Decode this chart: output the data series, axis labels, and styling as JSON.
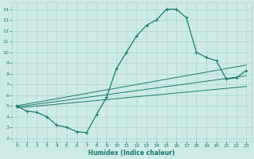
{
  "xlabel": "Humidex (Indice chaleur)",
  "bg_color": "#ceeae7",
  "grid_color": "#add4d0",
  "line_color": "#1a7a6e",
  "xlim": [
    -0.5,
    23.5
  ],
  "ylim": [
    1.7,
    14.6
  ],
  "yticks": [
    2,
    3,
    4,
    5,
    6,
    7,
    8,
    9,
    10,
    11,
    12,
    13,
    14
  ],
  "xticks": [
    0,
    1,
    2,
    3,
    4,
    5,
    6,
    7,
    8,
    9,
    10,
    11,
    12,
    13,
    14,
    15,
    16,
    17,
    18,
    19,
    20,
    21,
    22,
    23
  ],
  "main_x": [
    0,
    1,
    2,
    3,
    4,
    5,
    6,
    7,
    8,
    9,
    10,
    11,
    12,
    13,
    14,
    15,
    16,
    17,
    18,
    19,
    20,
    21,
    22,
    23
  ],
  "main_y": [
    5.0,
    4.5,
    4.4,
    4.0,
    3.2,
    3.0,
    2.6,
    2.5,
    4.2,
    5.8,
    8.5,
    10.0,
    11.5,
    12.5,
    13.0,
    14.0,
    14.0,
    13.2,
    10.0,
    9.5,
    9.2,
    7.5,
    7.6,
    8.3
  ],
  "line1_x": [
    0,
    23
  ],
  "line1_y": [
    4.8,
    6.8
  ],
  "line2_x": [
    0,
    23
  ],
  "line2_y": [
    4.9,
    7.8
  ],
  "line3_x": [
    0,
    23
  ],
  "line3_y": [
    5.0,
    8.8
  ],
  "tick_fontsize": 4.5,
  "xlabel_fontsize": 5.5
}
